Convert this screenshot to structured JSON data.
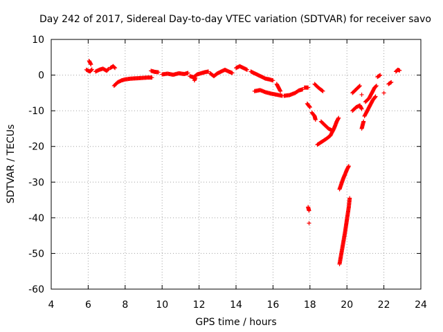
{
  "chart_data": {
    "type": "scatter",
    "title": "Day 242 of 2017, Sidereal Day-to-day VTEC variation (SDTVAR) for receiver savo",
    "xlabel": "GPS time / hours",
    "ylabel": "SDTVAR / TECUs",
    "xlim": [
      4,
      24
    ],
    "ylim": [
      -60,
      10
    ],
    "xticks": [
      "4",
      "6",
      "8",
      "10",
      "12",
      "14",
      "16",
      "18",
      "20",
      "22",
      "24"
    ],
    "yticks": [
      "10",
      "0",
      "-10",
      "-20",
      "-30",
      "-40",
      "-50",
      "-60"
    ],
    "grid": true,
    "marker": "+",
    "color": "#ff0000",
    "series": [
      {
        "name": "SDTVAR",
        "segments": [
          [
            [
              5.9,
              1.5
            ],
            [
              6.1,
              1.0
            ],
            [
              6.2,
              1.6
            ]
          ],
          [
            [
              6.05,
              4.0
            ],
            [
              6.15,
              3.0
            ]
          ],
          [
            [
              6.4,
              1.0
            ],
            [
              6.6,
              1.5
            ],
            [
              6.8,
              1.8
            ],
            [
              7.0,
              1.2
            ],
            [
              7.1,
              1.7
            ]
          ],
          [
            [
              7.2,
              2.0
            ],
            [
              7.35,
              2.5
            ],
            [
              7.45,
              2.0
            ]
          ],
          [
            [
              7.4,
              -3.0
            ],
            [
              7.6,
              -2.0
            ],
            [
              7.8,
              -1.5
            ],
            [
              8.0,
              -1.2
            ],
            [
              8.3,
              -1.0
            ],
            [
              8.6,
              -0.9
            ],
            [
              8.9,
              -0.8
            ],
            [
              9.2,
              -0.7
            ],
            [
              9.45,
              -0.7
            ]
          ],
          [
            [
              9.4,
              1.2
            ],
            [
              9.6,
              0.9
            ],
            [
              9.8,
              0.8
            ]
          ],
          [
            [
              10.0,
              0.2
            ],
            [
              10.3,
              0.4
            ],
            [
              10.6,
              0.1
            ],
            [
              10.9,
              0.5
            ],
            [
              11.2,
              0.3
            ],
            [
              11.4,
              0.6
            ]
          ],
          [
            [
              11.5,
              -0.3
            ],
            [
              11.7,
              -0.6
            ],
            [
              11.9,
              0.2
            ],
            [
              12.1,
              0.5
            ],
            [
              12.3,
              0.8
            ],
            [
              12.5,
              1.0
            ]
          ],
          [
            [
              11.75,
              -1.5
            ],
            [
              11.8,
              -0.8
            ]
          ],
          [
            [
              12.6,
              0.5
            ],
            [
              12.8,
              -0.3
            ],
            [
              13.0,
              0.5
            ],
            [
              13.2,
              1.0
            ],
            [
              13.4,
              1.5
            ],
            [
              13.6,
              1.0
            ],
            [
              13.8,
              0.6
            ]
          ],
          [
            [
              14.0,
              2.0
            ],
            [
              14.2,
              2.5
            ],
            [
              14.4,
              2.0
            ],
            [
              14.6,
              1.5
            ]
          ],
          [
            [
              14.8,
              1.0
            ],
            [
              15.0,
              0.5
            ],
            [
              15.2,
              0.0
            ],
            [
              15.4,
              -0.5
            ],
            [
              15.6,
              -1.0
            ],
            [
              15.8,
              -1.2
            ],
            [
              16.0,
              -1.5
            ]
          ],
          [
            [
              16.2,
              -2.5
            ],
            [
              16.3,
              -3.5
            ],
            [
              16.4,
              -4.5
            ]
          ],
          [
            [
              15.0,
              -4.5
            ],
            [
              15.3,
              -4.2
            ],
            [
              15.6,
              -4.8
            ],
            [
              15.9,
              -5.2
            ],
            [
              16.2,
              -5.5
            ],
            [
              16.5,
              -5.8
            ]
          ],
          [
            [
              16.6,
              -5.8
            ],
            [
              16.9,
              -5.6
            ],
            [
              17.2,
              -5.0
            ],
            [
              17.4,
              -4.3
            ],
            [
              17.6,
              -4.0
            ]
          ],
          [
            [
              17.7,
              -3.5
            ],
            [
              17.9,
              -3.5
            ]
          ],
          [
            [
              17.85,
              -8.0
            ],
            [
              18.0,
              -9.0
            ]
          ],
          [
            [
              18.1,
              -10.5
            ],
            [
              18.25,
              -11.5
            ],
            [
              18.3,
              -12.5
            ]
          ],
          [
            [
              18.25,
              -2.5
            ],
            [
              18.45,
              -3.5
            ],
            [
              18.7,
              -4.5
            ]
          ],
          [
            [
              18.6,
              -13.0
            ],
            [
              18.8,
              -14.0
            ],
            [
              19.0,
              -15.0
            ],
            [
              19.2,
              -15.5
            ]
          ],
          [
            [
              18.4,
              -19.5
            ],
            [
              18.7,
              -18.5
            ],
            [
              18.9,
              -17.8
            ],
            [
              19.1,
              -17.0
            ],
            [
              19.3,
              -15.0
            ],
            [
              19.45,
              -13.0
            ],
            [
              19.55,
              -12.0
            ]
          ],
          [
            [
              19.6,
              -32.0
            ],
            [
              19.7,
              -30.5
            ],
            [
              19.8,
              -29.0
            ],
            [
              19.9,
              -27.8
            ],
            [
              20.0,
              -26.5
            ],
            [
              20.1,
              -25.5
            ]
          ],
          [
            [
              19.6,
              -53.0
            ],
            [
              19.7,
              -50.0
            ],
            [
              19.8,
              -47.0
            ],
            [
              19.9,
              -44.0
            ],
            [
              20.0,
              -40.5
            ],
            [
              20.1,
              -37.0
            ],
            [
              20.15,
              -34.5
            ]
          ],
          [
            [
              17.9,
              -37.0
            ],
            [
              17.95,
              -38.0
            ]
          ],
          [
            [
              17.95,
              -41.5
            ]
          ],
          [
            [
              20.3,
              -10.0
            ],
            [
              20.5,
              -9.0
            ],
            [
              20.7,
              -8.5
            ],
            [
              20.8,
              -9.5
            ]
          ],
          [
            [
              20.3,
              -5.0
            ],
            [
              20.5,
              -4.0
            ],
            [
              20.7,
              -3.0
            ]
          ],
          [
            [
              20.8,
              -5.5
            ]
          ],
          [
            [
              20.8,
              -15.0
            ],
            [
              20.85,
              -14.0
            ],
            [
              20.9,
              -13.0
            ]
          ],
          [
            [
              20.95,
              -11.5
            ],
            [
              21.1,
              -10.0
            ],
            [
              21.25,
              -8.5
            ],
            [
              21.4,
              -7.0
            ],
            [
              21.55,
              -6.0
            ]
          ],
          [
            [
              21.0,
              -7.5
            ],
            [
              21.2,
              -6.5
            ],
            [
              21.35,
              -5.0
            ],
            [
              21.5,
              -3.5
            ],
            [
              21.6,
              -3.0
            ]
          ],
          [
            [
              21.65,
              -0.5
            ],
            [
              21.8,
              0.0
            ]
          ],
          [
            [
              22.0,
              -5.0
            ]
          ],
          [
            [
              22.25,
              -2.5
            ],
            [
              22.4,
              -2.0
            ]
          ],
          [
            [
              22.65,
              1.0
            ],
            [
              22.75,
              1.5
            ],
            [
              22.85,
              1.3
            ]
          ]
        ]
      }
    ]
  }
}
